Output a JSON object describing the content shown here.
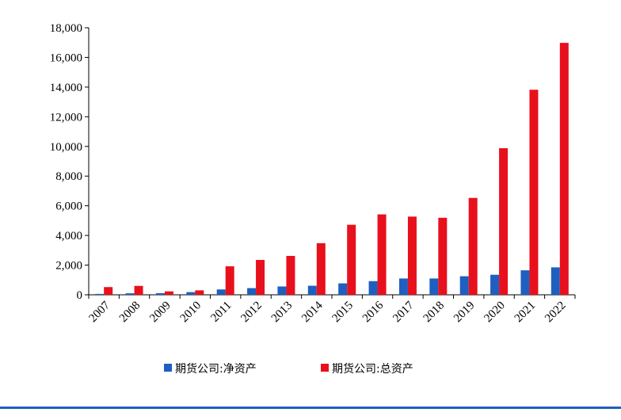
{
  "chart_data": {
    "type": "bar",
    "categories": [
      "2007",
      "2008",
      "2009",
      "2010",
      "2011",
      "2012",
      "2013",
      "2014",
      "2015",
      "2016",
      "2017",
      "2018",
      "2019",
      "2020",
      "2021",
      "2022"
    ],
    "series": [
      {
        "name": "期货公司:净资产",
        "color": "#1f5fbf",
        "values": [
          60,
          100,
          110,
          180,
          360,
          450,
          560,
          610,
          770,
          920,
          1100,
          1100,
          1250,
          1350,
          1650,
          1850
        ]
      },
      {
        "name": "期货公司:总资产",
        "color": "#e8101c",
        "values": [
          520,
          600,
          230,
          300,
          1920,
          2350,
          2620,
          3480,
          4720,
          5420,
          5270,
          5190,
          6530,
          9880,
          13820,
          16980
        ]
      }
    ],
    "ylim": [
      0,
      18000
    ],
    "yticks": [
      "0",
      "2,000",
      "4,000",
      "6,000",
      "8,000",
      "10,000",
      "12,000",
      "14,000",
      "16,000",
      "18,000"
    ],
    "title": "",
    "xlabel": "",
    "ylabel": "",
    "grid": false,
    "legend_position": "bottom"
  }
}
